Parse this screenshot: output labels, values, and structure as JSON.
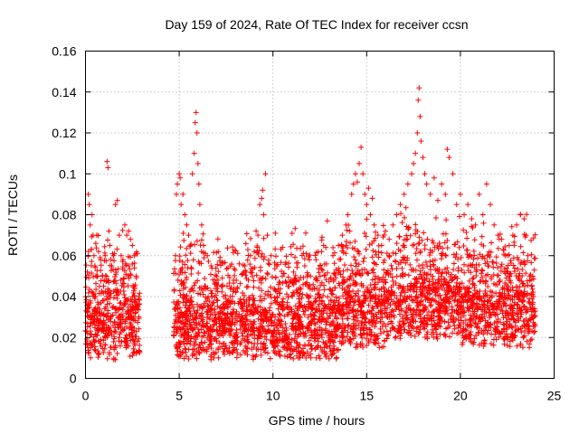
{
  "chart_data": {
    "type": "scatter",
    "title": "Day 159 of 2024, Rate Of TEC Index for receiver ccsn",
    "xlabel": "GPS time / hours",
    "ylabel": "ROTI / TECUs",
    "xlim": [
      0,
      25
    ],
    "ylim": [
      0,
      0.16
    ],
    "x_ticks": [
      0,
      5,
      10,
      15,
      20,
      25
    ],
    "y_ticks": [
      0,
      0.02,
      0.04,
      0.06,
      0.08,
      0.1,
      0.12,
      0.14,
      0.16
    ],
    "x_tick_labels": [
      "0",
      "5",
      "10",
      "15",
      "20",
      "25"
    ],
    "y_tick_labels": [
      "0",
      "0.02",
      "0.04",
      "0.06",
      "0.08",
      "0.1",
      "0.12",
      "0.14",
      "0.16"
    ],
    "grid": true,
    "marker": "plus",
    "color": "#ff0000",
    "series": [
      {
        "points": [
          [
            0.1,
            0.052
          ],
          [
            0.15,
            0.09
          ],
          [
            0.2,
            0.085
          ],
          [
            0.25,
            0.075
          ],
          [
            0.3,
            0.063
          ],
          [
            0.35,
            0.08
          ],
          [
            0.4,
            0.07
          ],
          [
            0.45,
            0.06
          ],
          [
            0.5,
            0.055
          ],
          [
            0.55,
            0.066
          ],
          [
            0.6,
            0.07
          ],
          [
            0.65,
            0.05
          ],
          [
            0.7,
            0.062
          ],
          [
            0.75,
            0.045
          ],
          [
            0.8,
            0.058
          ],
          [
            0.9,
            0.05
          ],
          [
            1.0,
            0.048
          ],
          [
            1.05,
            0.06
          ],
          [
            1.15,
            0.106
          ],
          [
            1.2,
            0.103
          ],
          [
            1.25,
            0.072
          ],
          [
            1.3,
            0.065
          ],
          [
            1.4,
            0.055
          ],
          [
            1.5,
            0.06
          ],
          [
            1.6,
            0.085
          ],
          [
            1.7,
            0.087
          ],
          [
            1.8,
            0.07
          ],
          [
            1.9,
            0.06
          ],
          [
            2.0,
            0.058
          ],
          [
            2.1,
            0.075
          ],
          [
            2.2,
            0.07
          ],
          [
            2.3,
            0.072
          ],
          [
            2.4,
            0.068
          ],
          [
            2.5,
            0.065
          ],
          [
            2.6,
            0.06
          ],
          [
            2.7,
            0.05
          ],
          [
            2.8,
            0.035
          ],
          [
            4.8,
            0.06
          ],
          [
            4.85,
            0.09
          ],
          [
            4.9,
            0.095
          ],
          [
            5.0,
            0.1
          ],
          [
            5.05,
            0.098
          ],
          [
            5.1,
            0.085
          ],
          [
            5.2,
            0.09
          ],
          [
            5.3,
            0.08
          ],
          [
            5.4,
            0.075
          ],
          [
            5.5,
            0.07
          ],
          [
            5.6,
            0.065
          ],
          [
            5.7,
            0.1
          ],
          [
            5.8,
            0.11
          ],
          [
            5.85,
            0.125
          ],
          [
            5.9,
            0.13
          ],
          [
            5.95,
            0.12
          ],
          [
            6.0,
            0.105
          ],
          [
            6.05,
            0.095
          ],
          [
            6.1,
            0.085
          ],
          [
            6.2,
            0.075
          ],
          [
            6.3,
            0.065
          ],
          [
            6.5,
            0.06
          ],
          [
            6.7,
            0.055
          ],
          [
            7.0,
            0.05
          ],
          [
            7.3,
            0.045
          ],
          [
            7.6,
            0.054
          ],
          [
            7.9,
            0.048
          ],
          [
            8.2,
            0.056
          ],
          [
            8.5,
            0.055
          ],
          [
            8.8,
            0.06
          ],
          [
            9.0,
            0.062
          ],
          [
            9.2,
            0.07
          ],
          [
            9.3,
            0.085
          ],
          [
            9.4,
            0.088
          ],
          [
            9.45,
            0.092
          ],
          [
            9.5,
            0.08
          ],
          [
            9.6,
            0.1
          ],
          [
            9.7,
            0.07
          ],
          [
            9.9,
            0.06
          ],
          [
            10.2,
            0.055
          ],
          [
            10.5,
            0.05
          ],
          [
            10.8,
            0.045
          ],
          [
            11.1,
            0.052
          ],
          [
            11.4,
            0.048
          ],
          [
            11.7,
            0.055
          ],
          [
            12.0,
            0.05
          ],
          [
            12.3,
            0.058
          ],
          [
            12.6,
            0.062
          ],
          [
            12.9,
            0.077
          ],
          [
            13.2,
            0.06
          ],
          [
            13.5,
            0.065
          ],
          [
            13.7,
            0.07
          ],
          [
            13.9,
            0.075
          ],
          [
            14.0,
            0.08
          ],
          [
            14.1,
            0.072
          ],
          [
            14.2,
            0.09
          ],
          [
            14.3,
            0.095
          ],
          [
            14.4,
            0.1
          ],
          [
            14.5,
            0.096
          ],
          [
            14.6,
            0.105
          ],
          [
            14.7,
            0.113
          ],
          [
            14.8,
            0.1
          ],
          [
            14.9,
            0.09
          ],
          [
            15.0,
            0.085
          ],
          [
            15.1,
            0.093
          ],
          [
            15.2,
            0.08
          ],
          [
            15.3,
            0.088
          ],
          [
            15.4,
            0.075
          ],
          [
            15.6,
            0.07
          ],
          [
            15.8,
            0.065
          ],
          [
            16.0,
            0.072
          ],
          [
            16.2,
            0.068
          ],
          [
            16.4,
            0.075
          ],
          [
            16.6,
            0.08
          ],
          [
            16.8,
            0.085
          ],
          [
            17.0,
            0.09
          ],
          [
            17.2,
            0.095
          ],
          [
            17.4,
            0.1
          ],
          [
            17.5,
            0.105
          ],
          [
            17.6,
            0.11
          ],
          [
            17.7,
            0.12
          ],
          [
            17.75,
            0.136
          ],
          [
            17.8,
            0.142
          ],
          [
            17.85,
            0.128
          ],
          [
            17.9,
            0.116
          ],
          [
            18.0,
            0.108
          ],
          [
            18.1,
            0.1
          ],
          [
            18.2,
            0.095
          ],
          [
            18.4,
            0.09
          ],
          [
            18.6,
            0.098
          ],
          [
            18.8,
            0.087
          ],
          [
            19.0,
            0.095
          ],
          [
            19.2,
            0.09
          ],
          [
            19.3,
            0.112
          ],
          [
            19.4,
            0.108
          ],
          [
            19.6,
            0.1
          ],
          [
            19.8,
            0.085
          ],
          [
            20.0,
            0.09
          ],
          [
            20.2,
            0.08
          ],
          [
            20.4,
            0.085
          ],
          [
            20.6,
            0.078
          ],
          [
            20.8,
            0.075
          ],
          [
            21.0,
            0.09
          ],
          [
            21.2,
            0.08
          ],
          [
            21.4,
            0.095
          ],
          [
            21.6,
            0.085
          ],
          [
            21.8,
            0.075
          ],
          [
            22.0,
            0.07
          ],
          [
            22.2,
            0.068
          ],
          [
            22.4,
            0.06
          ],
          [
            22.6,
            0.065
          ],
          [
            22.8,
            0.07
          ],
          [
            23.0,
            0.075
          ],
          [
            23.2,
            0.08
          ],
          [
            23.4,
            0.078
          ],
          [
            23.5,
            0.07
          ],
          [
            23.6,
            0.06
          ],
          [
            23.7,
            0.05
          ],
          [
            23.8,
            0.045
          ],
          [
            23.9,
            0.04
          ]
        ]
      }
    ]
  }
}
